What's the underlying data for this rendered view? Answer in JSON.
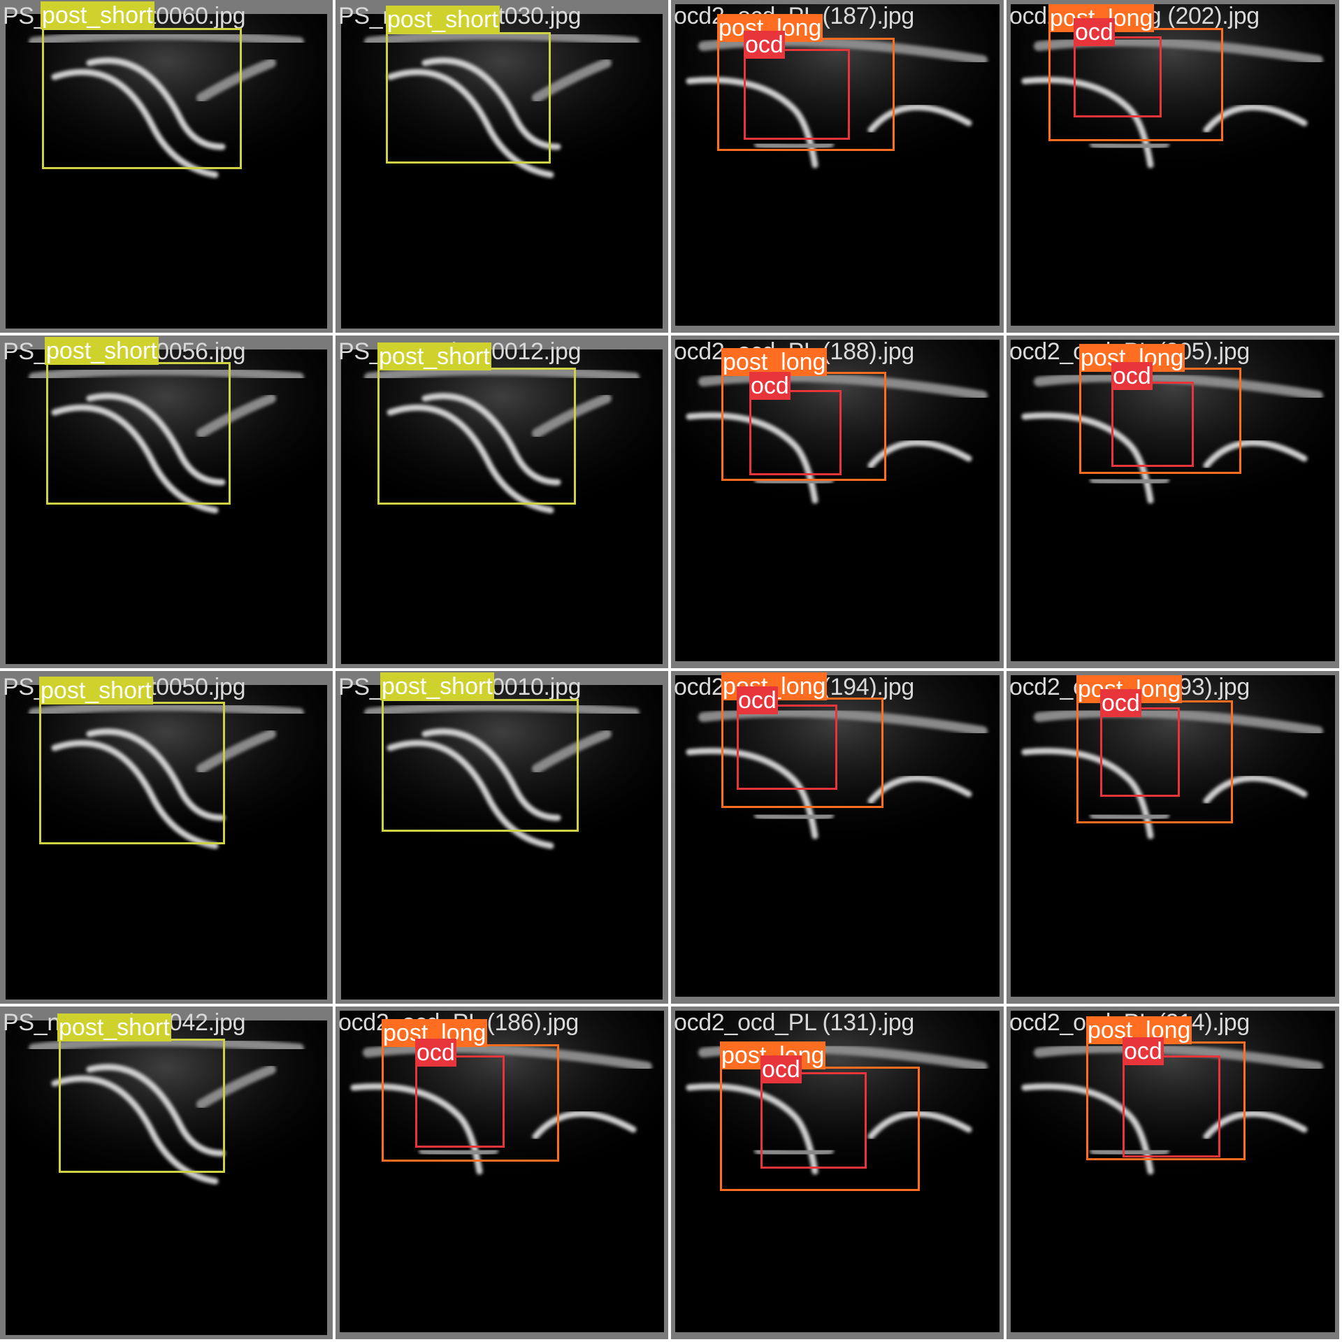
{
  "grid": {
    "tiles": [
      {
        "filename": "PS_post_short0060.jpg",
        "kind": "ps",
        "boxes": [
          {
            "cls": "ps",
            "label": "post_short"
          }
        ]
      },
      {
        "filename": "PS_npost_short030.jpg",
        "kind": "ps",
        "boxes": [
          {
            "cls": "ps",
            "label": "post_short"
          }
        ]
      },
      {
        "filename": "ocd2_ocd_PL (187).jpg",
        "kind": "pl",
        "boxes": [
          {
            "cls": "pl",
            "label": "post_long"
          },
          {
            "cls": "ocd",
            "label": "ocd"
          }
        ]
      },
      {
        "filename": "ocd2post_long (202).jpg",
        "kind": "pl",
        "boxes": [
          {
            "cls": "pl",
            "label": "post_long"
          },
          {
            "cls": "ocd",
            "label": "ocd"
          }
        ]
      },
      {
        "filename": "PS_post_short0056.jpg",
        "kind": "ps",
        "boxes": [
          {
            "cls": "ps",
            "label": "post_short"
          }
        ]
      },
      {
        "filename": "PS_post_short0012.jpg",
        "kind": "ps",
        "boxes": [
          {
            "cls": "ps",
            "label": "post_short"
          }
        ]
      },
      {
        "filename": "ocd2_ocd_PL (188).jpg",
        "kind": "pl",
        "boxes": [
          {
            "cls": "pl",
            "label": "post_long"
          },
          {
            "cls": "ocd",
            "label": "ocd"
          }
        ]
      },
      {
        "filename": "ocd2_ocd_PL (205).jpg",
        "kind": "pl",
        "boxes": [
          {
            "cls": "pl",
            "label": "post_long"
          },
          {
            "cls": "ocd",
            "label": "ocd"
          }
        ]
      },
      {
        "filename": "PS_post_short0050.jpg",
        "kind": "ps",
        "boxes": [
          {
            "cls": "ps",
            "label": "post_short"
          }
        ]
      },
      {
        "filename": "PS_post_short0010.jpg",
        "kind": "ps",
        "boxes": [
          {
            "cls": "ps",
            "label": "post_short"
          }
        ]
      },
      {
        "filename": "ocd2_ocd_PL (194).jpg",
        "kind": "pl",
        "boxes": [
          {
            "cls": "pl",
            "label": "post_long"
          },
          {
            "cls": "ocd",
            "label": "ocd"
          }
        ]
      },
      {
        "filename": "ocd2_ocd_PL (193).jpg",
        "kind": "pl",
        "boxes": [
          {
            "cls": "pl",
            "label": "post_long"
          },
          {
            "cls": "ocd",
            "label": "ocd"
          }
        ]
      },
      {
        "filename": "PS_npost_short042.jpg",
        "kind": "ps",
        "boxes": [
          {
            "cls": "ps",
            "label": "post_short"
          }
        ]
      },
      {
        "filename": "ocd2_ocd_PL (186).jpg",
        "kind": "pl",
        "boxes": [
          {
            "cls": "pl",
            "label": "post_long"
          },
          {
            "cls": "ocd",
            "label": "ocd"
          }
        ]
      },
      {
        "filename": "ocd2_ocd_PL (131).jpg",
        "kind": "pl",
        "boxes": [
          {
            "cls": "pl",
            "label": "post_long"
          },
          {
            "cls": "ocd",
            "label": "ocd"
          }
        ]
      },
      {
        "filename": "ocd2_ocd_PL (214).jpg",
        "kind": "pl",
        "boxes": [
          {
            "cls": "pl",
            "label": "post_long"
          },
          {
            "cls": "ocd",
            "label": "ocd"
          }
        ]
      }
    ]
  },
  "colors": {
    "post_short": "#cfd22c",
    "post_long": "#ff6d21",
    "ocd": "#e8353c",
    "tile_bg": "#7a7a7a"
  }
}
